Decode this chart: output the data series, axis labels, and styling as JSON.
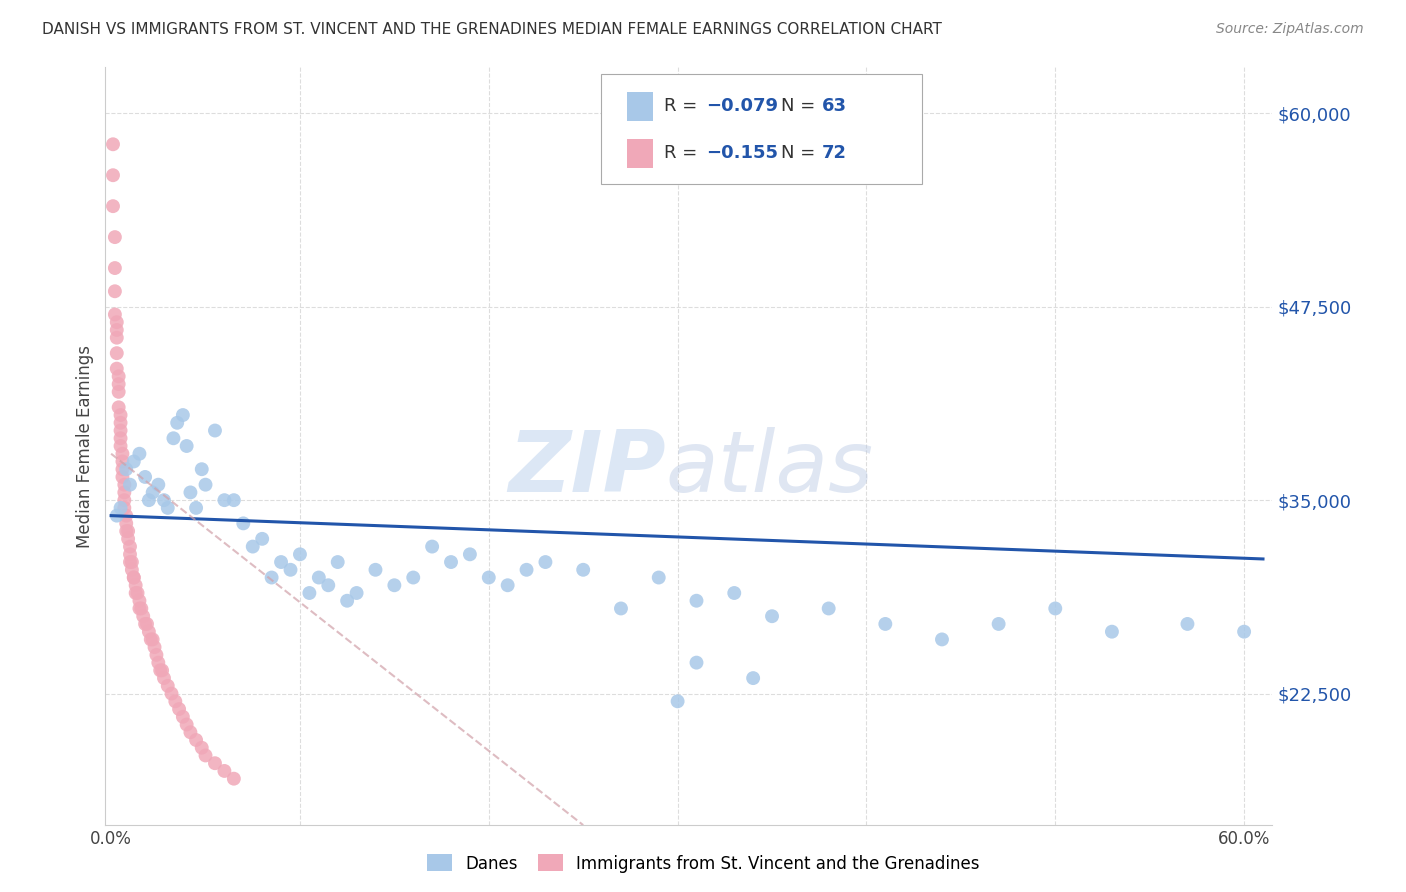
{
  "title": "DANISH VS IMMIGRANTS FROM ST. VINCENT AND THE GRENADINES MEDIAN FEMALE EARNINGS CORRELATION CHART",
  "source": "Source: ZipAtlas.com",
  "ylabel": "Median Female Earnings",
  "ytick_labels": [
    "$22,500",
    "$35,000",
    "$47,500",
    "$60,000"
  ],
  "ytick_values": [
    22500,
    35000,
    47500,
    60000
  ],
  "ymin": 14000,
  "ymax": 63000,
  "xmin": -0.003,
  "xmax": 0.615,
  "legend_label_blue": "Danes",
  "legend_label_pink": "Immigrants from St. Vincent and the Grenadines",
  "blue_color": "#a8c8e8",
  "pink_color": "#f0a8b8",
  "blue_line_color": "#2255aa",
  "pink_line_color": "#e08898",
  "blue_scatter_x": [
    0.003,
    0.005,
    0.008,
    0.01,
    0.012,
    0.015,
    0.018,
    0.02,
    0.022,
    0.025,
    0.028,
    0.03,
    0.033,
    0.035,
    0.038,
    0.04,
    0.042,
    0.045,
    0.048,
    0.05,
    0.055,
    0.06,
    0.065,
    0.07,
    0.075,
    0.08,
    0.085,
    0.09,
    0.095,
    0.1,
    0.105,
    0.11,
    0.115,
    0.12,
    0.125,
    0.13,
    0.14,
    0.15,
    0.16,
    0.17,
    0.18,
    0.19,
    0.2,
    0.21,
    0.22,
    0.23,
    0.25,
    0.27,
    0.29,
    0.31,
    0.33,
    0.35,
    0.38,
    0.41,
    0.44,
    0.47,
    0.5,
    0.53,
    0.57,
    0.6,
    0.31,
    0.34,
    0.3
  ],
  "blue_scatter_y": [
    34000,
    34500,
    37000,
    36000,
    37500,
    38000,
    36500,
    35000,
    35500,
    36000,
    35000,
    34500,
    39000,
    40000,
    40500,
    38500,
    35500,
    34500,
    37000,
    36000,
    39500,
    35000,
    35000,
    33500,
    32000,
    32500,
    30000,
    31000,
    30500,
    31500,
    29000,
    30000,
    29500,
    31000,
    28500,
    29000,
    30500,
    29500,
    30000,
    32000,
    31000,
    31500,
    30000,
    29500,
    30500,
    31000,
    30500,
    28000,
    30000,
    28500,
    29000,
    27500,
    28000,
    27000,
    26000,
    27000,
    28000,
    26500,
    27000,
    26500,
    24500,
    23500,
    22000
  ],
  "pink_scatter_x": [
    0.001,
    0.001,
    0.001,
    0.002,
    0.002,
    0.002,
    0.002,
    0.003,
    0.003,
    0.003,
    0.003,
    0.003,
    0.004,
    0.004,
    0.004,
    0.004,
    0.005,
    0.005,
    0.005,
    0.005,
    0.005,
    0.006,
    0.006,
    0.006,
    0.006,
    0.007,
    0.007,
    0.007,
    0.007,
    0.008,
    0.008,
    0.008,
    0.009,
    0.009,
    0.01,
    0.01,
    0.01,
    0.011,
    0.011,
    0.012,
    0.012,
    0.013,
    0.013,
    0.014,
    0.015,
    0.015,
    0.016,
    0.017,
    0.018,
    0.019,
    0.02,
    0.021,
    0.022,
    0.023,
    0.024,
    0.025,
    0.026,
    0.027,
    0.028,
    0.03,
    0.032,
    0.034,
    0.036,
    0.038,
    0.04,
    0.042,
    0.045,
    0.048,
    0.05,
    0.055,
    0.06,
    0.065
  ],
  "pink_scatter_y": [
    58000,
    56000,
    54000,
    52000,
    50000,
    48500,
    47000,
    46500,
    46000,
    45500,
    44500,
    43500,
    43000,
    42500,
    42000,
    41000,
    40500,
    40000,
    39500,
    39000,
    38500,
    38000,
    37500,
    37000,
    36500,
    36000,
    35500,
    35000,
    34500,
    34000,
    33500,
    33000,
    33000,
    32500,
    32000,
    31500,
    31000,
    31000,
    30500,
    30000,
    30000,
    29500,
    29000,
    29000,
    28500,
    28000,
    28000,
    27500,
    27000,
    27000,
    26500,
    26000,
    26000,
    25500,
    25000,
    24500,
    24000,
    24000,
    23500,
    23000,
    22500,
    22000,
    21500,
    21000,
    20500,
    20000,
    19500,
    19000,
    18500,
    18000,
    17500,
    17000
  ],
  "blue_line_x": [
    0.0,
    0.61
  ],
  "blue_line_y": [
    34000,
    31200
  ],
  "pink_line_x": [
    0.0,
    0.25
  ],
  "pink_line_y": [
    38000,
    14000
  ],
  "watermark_zip": "ZIP",
  "watermark_atlas": "atlas"
}
